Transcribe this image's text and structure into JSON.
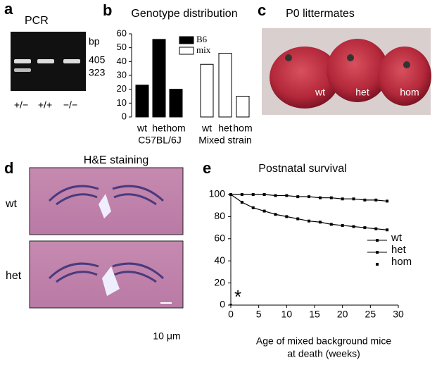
{
  "panels": {
    "a": {
      "label": "a",
      "title": "PCR",
      "unit": "bp",
      "bands": [
        "405",
        "323"
      ],
      "lanes": [
        "+/−",
        "+/+",
        "−/−"
      ]
    },
    "c": {
      "label": "c",
      "title": "P0 littermates",
      "pups": [
        "wt",
        "het",
        "hom"
      ]
    },
    "d": {
      "label": "d",
      "title": "H&E staining",
      "rows": [
        "wt",
        "het"
      ],
      "scale": "10 μm"
    }
  },
  "chart_data": [
    {
      "type": "bar",
      "label": "b",
      "title": "Genotype distribution",
      "categories": [
        "wt",
        "het",
        "hom",
        "wt",
        "het",
        "hom"
      ],
      "groups": [
        "C57BL/6J",
        "Mixed strain"
      ],
      "series": [
        {
          "name": "B6",
          "color": "#000000",
          "values": [
            23,
            56,
            20,
            null,
            null,
            null
          ]
        },
        {
          "name": "mix",
          "color": "#ffffff",
          "values": [
            null,
            null,
            null,
            38,
            46,
            15
          ]
        }
      ],
      "ylim": [
        0,
        60
      ],
      "yticks": [
        0,
        10,
        20,
        30,
        40,
        50,
        60
      ]
    },
    {
      "type": "line",
      "label": "e",
      "title": "Postnatal survival",
      "xlabel": [
        "Age of  mixed background mice",
        "at death (weeks)"
      ],
      "annotation": "*",
      "series": [
        {
          "name": "wt",
          "color": "#000000",
          "x": [
            0,
            2,
            4,
            6,
            8,
            10,
            12,
            14,
            16,
            18,
            20,
            22,
            24,
            26,
            28
          ],
          "values": [
            100,
            100,
            100,
            100,
            99,
            99,
            98,
            98,
            97,
            97,
            96,
            96,
            95,
            95,
            94
          ]
        },
        {
          "name": "het",
          "color": "#000000",
          "x": [
            0,
            2,
            4,
            6,
            8,
            10,
            12,
            14,
            16,
            18,
            20,
            22,
            24,
            26,
            28
          ],
          "values": [
            100,
            93,
            88,
            85,
            82,
            80,
            78,
            76,
            75,
            73,
            72,
            71,
            70,
            69,
            68
          ]
        },
        {
          "name": "hom",
          "color": "#000000",
          "x": [
            0
          ],
          "values": [
            0
          ]
        }
      ],
      "xlim": [
        0,
        30
      ],
      "xticks": [
        0,
        5,
        10,
        15,
        20,
        25,
        30
      ],
      "ylim": [
        0,
        100
      ],
      "yticks": [
        0,
        20,
        40,
        60,
        80,
        100
      ]
    }
  ]
}
